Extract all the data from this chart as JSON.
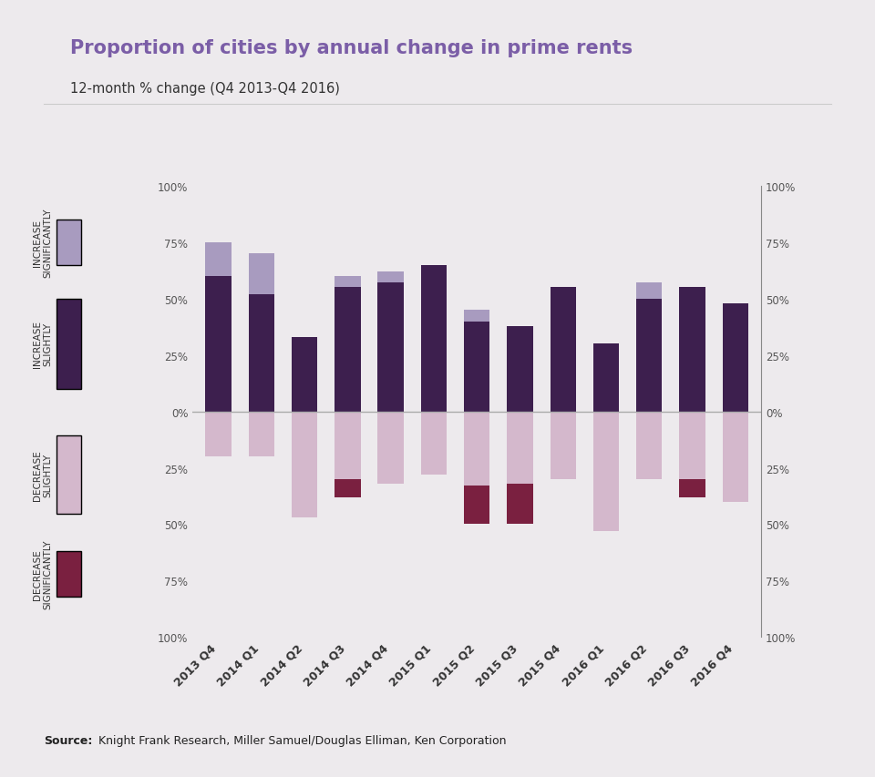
{
  "title": "Proportion of cities by annual change in prime rents",
  "subtitle": "12-month % change (Q4 2013-Q4 2016)",
  "source_bold": "Source:",
  "source_rest": " Knight Frank Research, Miller Samuel/Douglas Elliman, Ken Corporation",
  "background_color": "#edeaed",
  "categories": [
    "2013 Q4",
    "2014 Q1",
    "2014 Q2",
    "2014 Q3",
    "2014 Q4",
    "2015 Q1",
    "2015 Q2",
    "2015 Q3",
    "2015 Q4",
    "2016 Q1",
    "2016 Q2",
    "2016 Q3",
    "2016 Q4"
  ],
  "increase_significantly": [
    15,
    18,
    0,
    5,
    5,
    0,
    5,
    0,
    0,
    0,
    7,
    0,
    0
  ],
  "increase_slightly": [
    60,
    52,
    33,
    55,
    57,
    65,
    40,
    38,
    55,
    30,
    50,
    55,
    48
  ],
  "decrease_slightly": [
    20,
    20,
    47,
    30,
    32,
    28,
    33,
    32,
    30,
    53,
    30,
    30,
    40
  ],
  "decrease_significantly": [
    0,
    0,
    0,
    8,
    0,
    0,
    17,
    18,
    0,
    0,
    0,
    8,
    0
  ],
  "color_increase_significantly": "#a89bbf",
  "color_increase_slightly": "#3d1f4e",
  "color_decrease_slightly": "#d4b8cc",
  "color_decrease_significantly": "#7a2040",
  "yticks": [
    -100,
    -75,
    -50,
    -25,
    0,
    25,
    50,
    75,
    100
  ],
  "ytick_labels": [
    "100%",
    "75%",
    "50%",
    "25%",
    "0%",
    "25%",
    "50%",
    "75%",
    "100%"
  ],
  "legend_labels": [
    "INCREASE\nSIGNIFICANTLY",
    "INCREASE\nSLIGHTLY",
    "DECREASE\nSLIGHTLY",
    "DECREASE\nSIGNIFICANTLY"
  ],
  "title_color": "#7b5ea7",
  "subtitle_color": "#333333",
  "bar_width": 0.6
}
